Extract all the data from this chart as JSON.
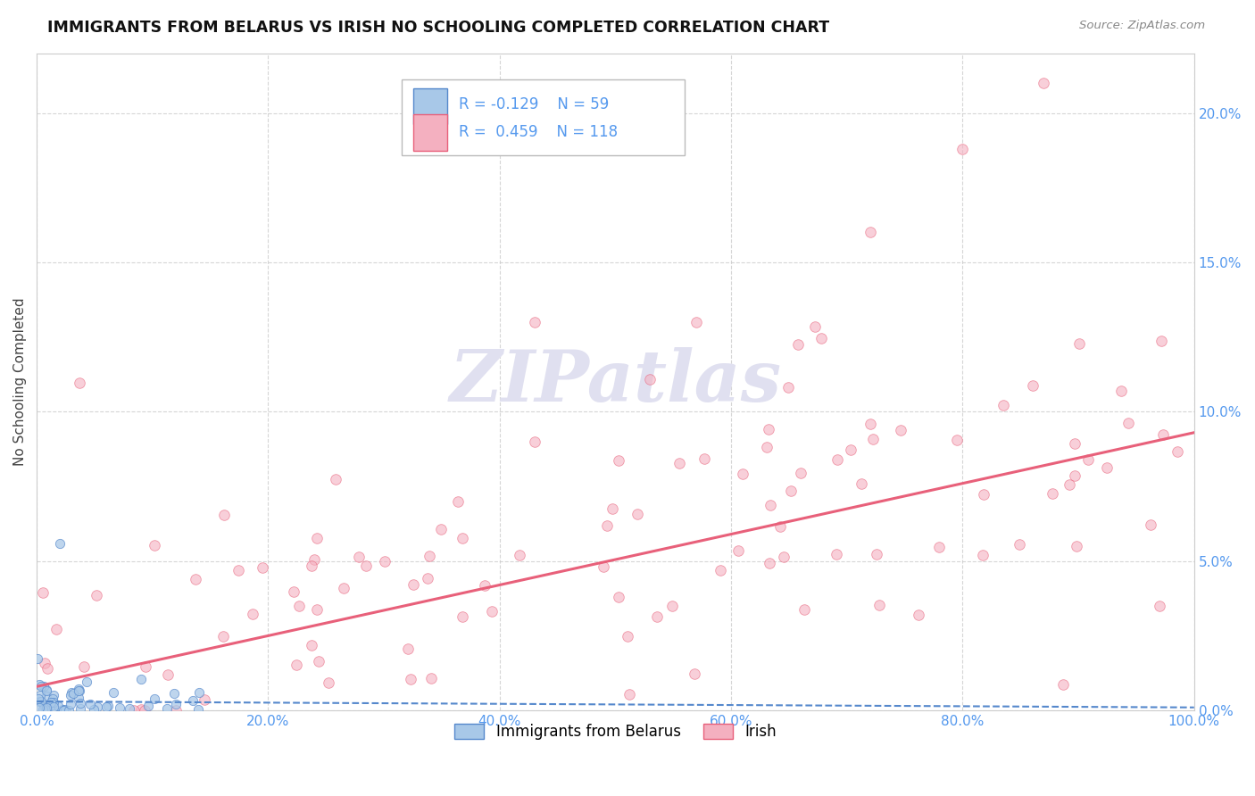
{
  "title": "IMMIGRANTS FROM BELARUS VS IRISH NO SCHOOLING COMPLETED CORRELATION CHART",
  "source": "Source: ZipAtlas.com",
  "ylabel": "No Schooling Completed",
  "legend_label1": "Immigrants from Belarus",
  "legend_label2": "Irish",
  "r1": -0.129,
  "n1": 59,
  "r2": 0.459,
  "n2": 118,
  "color1": "#a8c8e8",
  "color2": "#f4b0c0",
  "trend1_color": "#5588cc",
  "trend2_color": "#e8607a",
  "xlim": [
    0.0,
    1.0
  ],
  "ylim": [
    0.0,
    0.22
  ],
  "xtick_vals": [
    0.0,
    0.2,
    0.4,
    0.6,
    0.8,
    1.0
  ],
  "ytick_vals": [
    0.0,
    0.05,
    0.1,
    0.15,
    0.2
  ],
  "xtick_labels": [
    "0.0%",
    "20.0%",
    "40.0%",
    "60.0%",
    "80.0%",
    "100.0%"
  ],
  "ytick_labels": [
    "0.0%",
    "5.0%",
    "10.0%",
    "15.0%",
    "20.0%"
  ],
  "tick_color": "#5599ee",
  "watermark_color": "#e0e0f0",
  "title_color": "#111111",
  "source_color": "#888888",
  "ylabel_color": "#444444",
  "grid_color": "#cccccc"
}
